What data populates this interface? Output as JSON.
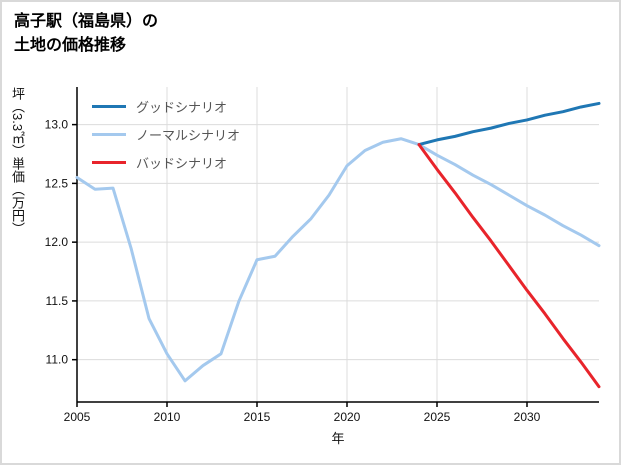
{
  "title": {
    "line1": "高子駅（福島県）の",
    "line2": "土地の価格推移"
  },
  "chart_data": {
    "type": "line",
    "title": "高子駅（福島県）の土地の価格推移",
    "xlabel": "年",
    "ylabel": "坪（3.3㎡）単価（万円）",
    "xlim": [
      2005,
      2034
    ],
    "ylim": [
      10.64,
      13.32
    ],
    "x_ticks": [
      2005,
      2010,
      2015,
      2020,
      2025,
      2030
    ],
    "y_ticks": [
      11.0,
      11.5,
      12.0,
      12.5,
      13.0
    ],
    "grid": true,
    "legend_position": "top-left",
    "colors": {
      "good": "#1f77b4",
      "normal": "#a4c9ee",
      "bad": "#e8242b",
      "grid": "#dcdcdc",
      "axis": "#000000"
    },
    "series": [
      {
        "name": "グッドシナリオ",
        "color": "#1f77b4",
        "x": [
          2024,
          2025,
          2026,
          2027,
          2028,
          2029,
          2030,
          2031,
          2032,
          2033,
          2034
        ],
        "y": [
          12.83,
          12.87,
          12.9,
          12.94,
          12.97,
          13.01,
          13.04,
          13.08,
          13.11,
          13.15,
          13.18
        ]
      },
      {
        "name": "ノーマルシナリオ",
        "color": "#a4c9ee",
        "x": [
          2005,
          2006,
          2007,
          2008,
          2009,
          2010,
          2011,
          2012,
          2013,
          2014,
          2015,
          2016,
          2017,
          2018,
          2019,
          2020,
          2021,
          2022,
          2023,
          2024,
          2025,
          2026,
          2027,
          2028,
          2029,
          2030,
          2031,
          2032,
          2033,
          2034
        ],
        "y": [
          12.55,
          12.45,
          12.46,
          11.95,
          11.35,
          11.05,
          10.82,
          10.95,
          11.05,
          11.5,
          11.85,
          11.88,
          12.05,
          12.2,
          12.4,
          12.65,
          12.78,
          12.85,
          12.88,
          12.83,
          12.74,
          12.66,
          12.57,
          12.49,
          12.4,
          12.31,
          12.23,
          12.14,
          12.06,
          11.97
        ]
      },
      {
        "name": "バッドシナリオ",
        "color": "#e8242b",
        "x": [
          2024,
          2025,
          2026,
          2027,
          2028,
          2029,
          2030,
          2031,
          2032,
          2033,
          2034
        ],
        "y": [
          12.83,
          12.62,
          12.42,
          12.21,
          12.01,
          11.8,
          11.59,
          11.39,
          11.18,
          10.98,
          10.77
        ]
      }
    ]
  }
}
